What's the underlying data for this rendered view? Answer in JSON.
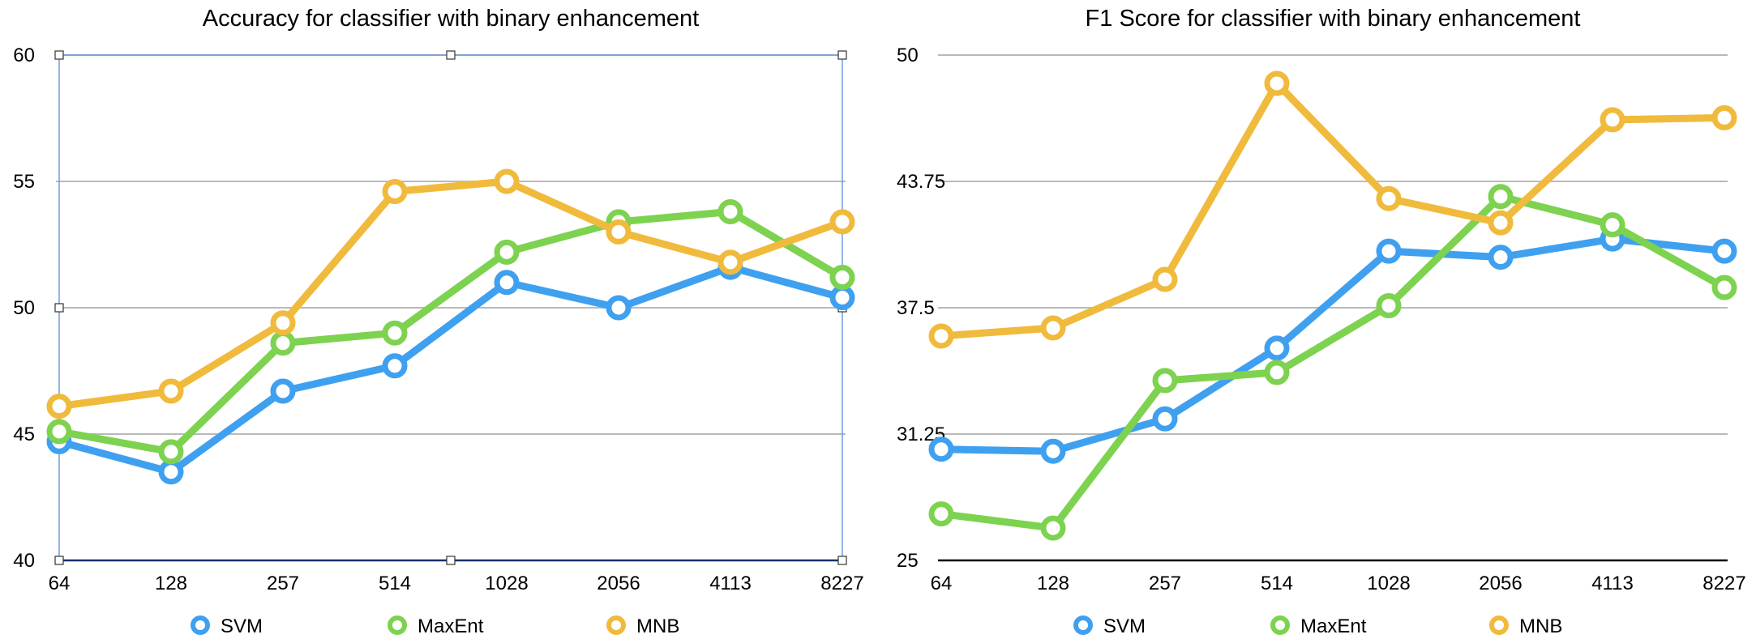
{
  "colors": {
    "SVM": "#3FA0F0",
    "MaxEnt": "#7DD24F",
    "MNB": "#F0BA3C"
  },
  "chart_data": [
    {
      "type": "line",
      "title": "Accuracy for classifier with binary enhancement",
      "categories": [
        "64",
        "128",
        "257",
        "514",
        "1028",
        "2056",
        "4113",
        "8227"
      ],
      "ylim": [
        40,
        60
      ],
      "yticks": [
        "40",
        "45",
        "50",
        "55",
        "60"
      ],
      "ytick_values": [
        40,
        45,
        50,
        55,
        60
      ],
      "grid": true,
      "legend_placement": "bottom",
      "series": [
        {
          "name": "SVM",
          "values": [
            44.7,
            43.5,
            46.7,
            47.7,
            51.0,
            50.0,
            51.6,
            50.4
          ]
        },
        {
          "name": "MaxEnt",
          "values": [
            45.1,
            44.3,
            48.6,
            49.0,
            52.2,
            53.4,
            53.8,
            51.2
          ]
        },
        {
          "name": "MNB",
          "values": [
            46.1,
            46.7,
            49.4,
            54.6,
            55.0,
            53.0,
            51.8,
            53.4
          ]
        }
      ]
    },
    {
      "type": "line",
      "title": "F1 Score for classifier with binary enhancement",
      "categories": [
        "64",
        "128",
        "257",
        "514",
        "1028",
        "2056",
        "4113",
        "8227"
      ],
      "ylim": [
        25,
        50
      ],
      "yticks": [
        "25",
        "31.25",
        "37.5",
        "43.75",
        "50"
      ],
      "ytick_values": [
        25,
        31.25,
        37.5,
        43.75,
        50
      ],
      "grid": true,
      "legend_placement": "bottom",
      "series": [
        {
          "name": "SVM",
          "values": [
            30.5,
            30.4,
            32.0,
            35.5,
            40.3,
            40.0,
            40.9,
            40.3
          ]
        },
        {
          "name": "MaxEnt",
          "values": [
            27.3,
            26.6,
            33.9,
            34.3,
            37.6,
            43.0,
            41.6,
            38.5
          ]
        },
        {
          "name": "MNB",
          "values": [
            36.1,
            36.5,
            38.9,
            48.6,
            42.9,
            41.7,
            46.8,
            46.9
          ]
        }
      ]
    }
  ]
}
